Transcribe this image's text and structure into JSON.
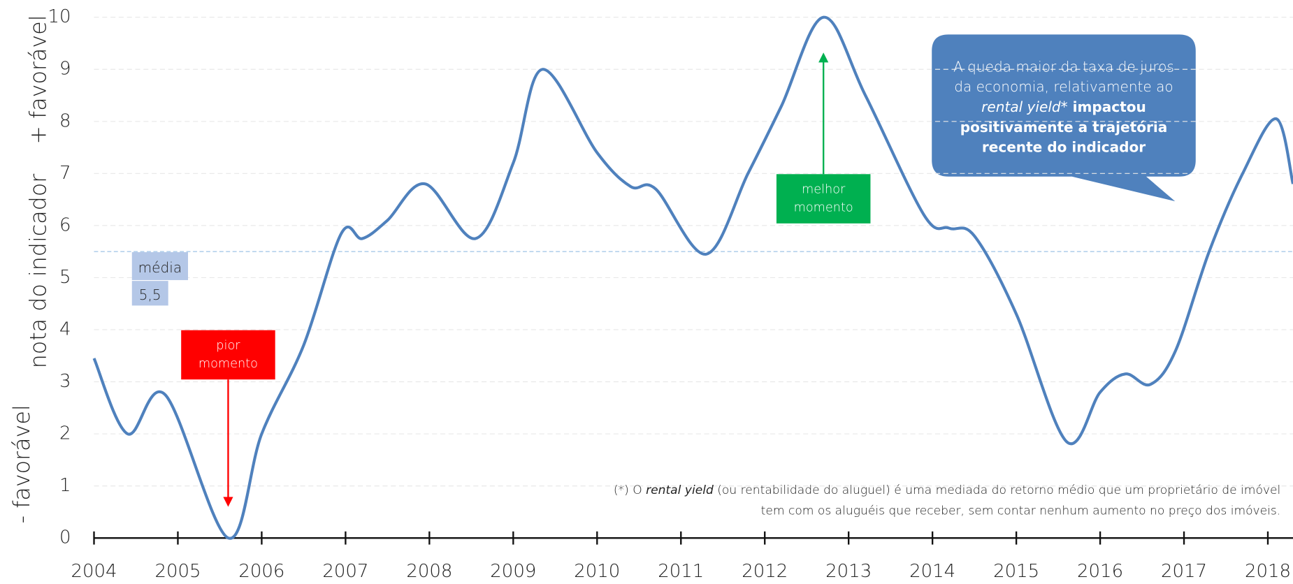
{
  "chart_data": {
    "type": "line",
    "y_label": "nota do indicador",
    "y_top_label": "+ favorável",
    "y_bottom_label": "- favorável",
    "x": [
      2004.0,
      2004.4,
      2004.85,
      2005.6,
      2006.0,
      2006.5,
      2006.95,
      2007.2,
      2007.5,
      2007.95,
      2008.55,
      2009.0,
      2009.35,
      2010.0,
      2010.4,
      2010.7,
      2011.3,
      2011.8,
      2012.2,
      2012.7,
      2013.2,
      2013.9,
      2014.2,
      2014.5,
      2015.0,
      2015.6,
      2016.0,
      2016.3,
      2016.6,
      2016.9,
      2017.3,
      2017.7,
      2018.1,
      2018.3
    ],
    "series": [
      {
        "color": "#4f81bd",
        "values": [
          3.45,
          2.0,
          2.75,
          0.0,
          2.0,
          3.7,
          5.85,
          5.75,
          6.1,
          6.8,
          5.75,
          7.2,
          9.0,
          7.4,
          6.75,
          6.7,
          5.45,
          7.0,
          8.3,
          10.0,
          8.5,
          6.2,
          5.95,
          5.8,
          4.3,
          1.85,
          2.8,
          3.15,
          2.95,
          3.6,
          5.5,
          7.0,
          8.05,
          6.8
        ]
      }
    ],
    "xlim": [
      2004,
      2018.3
    ],
    "xticks": [
      2004,
      2005,
      2006,
      2007,
      2008,
      2009,
      2010,
      2011,
      2012,
      2013,
      2014,
      2015,
      2016,
      2017,
      2018
    ],
    "ylim": [
      0,
      10
    ],
    "yticks": [
      0,
      1,
      2,
      3,
      4,
      5,
      6,
      7,
      8,
      9,
      10
    ],
    "grid": true,
    "average": {
      "value": 5.5,
      "label": "média",
      "value_label": "5,5",
      "color": "#9dc3e6"
    },
    "worst": {
      "x": 2005.6,
      "label_lines": [
        "pior",
        "momento"
      ],
      "color": "#ff0000"
    },
    "best": {
      "x": 2012.7,
      "label_lines": [
        "melhor",
        "momento"
      ],
      "color": "#00b050"
    },
    "callout": {
      "color": "#4f81bd",
      "lines": [
        [
          {
            "text": "A queda maior da taxa de juros",
            "style": "normal"
          }
        ],
        [
          {
            "text": "da economia, relativamente ao",
            "style": "normal"
          }
        ],
        [
          {
            "text": "rental yield*",
            "style": "italic"
          },
          {
            "text": " impactou",
            "style": "bold"
          }
        ],
        [
          {
            "text": "positivamente a trajetória",
            "style": "bold"
          }
        ],
        [
          {
            "text": "recente do indicador",
            "style": "bold"
          }
        ]
      ]
    },
    "footnote": [
      [
        {
          "text": "(*) O ",
          "style": "normal"
        },
        {
          "text": "rental yield",
          "style": "italic"
        },
        {
          "text": " (ou rentabilidade do aluguel) é uma mediada do retorno médio que um proprietário de imóvel",
          "style": "normal"
        }
      ],
      [
        {
          "text": "tem com os aluguéis que receber, sem contar nenhum aumento no preço dos imóveis.",
          "style": "normal"
        }
      ]
    ]
  }
}
